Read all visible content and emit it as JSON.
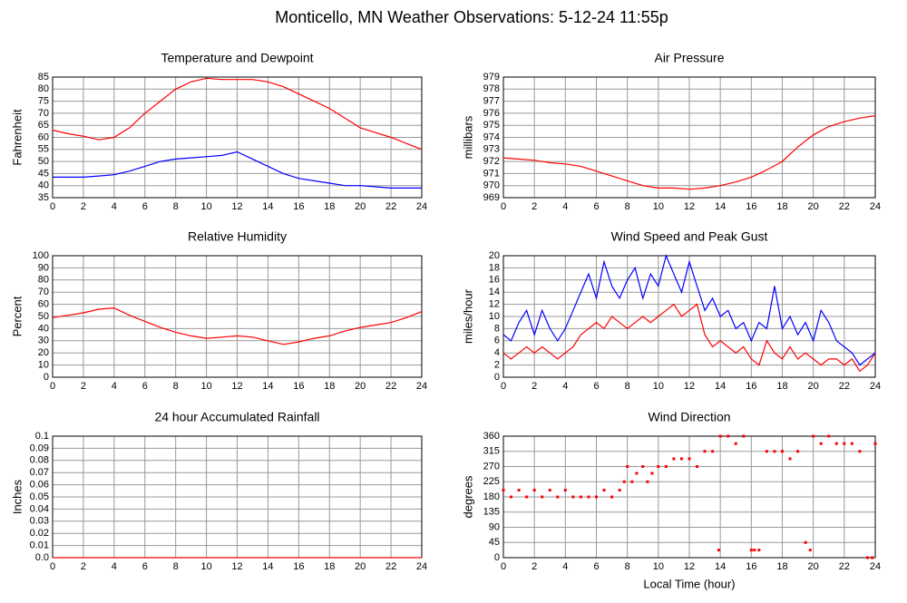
{
  "title": "Monticello, MN Weather Observations: 5-12-24 11:55p",
  "chart_data": [
    {
      "type": "line",
      "title": "Temperature and Dewpoint",
      "y_label": "Fahrenheit",
      "xlim": [
        0,
        24
      ],
      "xticks": [
        0,
        2,
        4,
        6,
        8,
        10,
        12,
        14,
        16,
        18,
        20,
        22,
        24
      ],
      "ylim": [
        35,
        85
      ],
      "yticks": [
        35,
        40,
        45,
        50,
        55,
        60,
        65,
        70,
        75,
        80,
        85
      ],
      "grid": true,
      "x": [
        0,
        1,
        2,
        3,
        4,
        5,
        6,
        7,
        8,
        9,
        10,
        11,
        12,
        13,
        14,
        15,
        16,
        17,
        18,
        19,
        20,
        21,
        22,
        23,
        24
      ],
      "series": [
        {
          "name": "Temperature",
          "color": "#ff0000",
          "values": [
            63,
            61.5,
            60.5,
            59,
            60,
            64,
            70,
            75,
            80,
            83,
            84.5,
            84,
            84,
            84,
            83,
            81,
            78,
            75,
            72,
            68,
            64,
            62,
            60,
            57.5,
            55
          ]
        },
        {
          "name": "Dewpoint",
          "color": "#0000ff",
          "values": [
            43.5,
            43.5,
            43.5,
            44,
            44.5,
            46,
            48,
            50,
            51,
            51.5,
            52,
            52.5,
            54,
            51,
            48,
            45,
            43,
            42,
            41,
            40,
            40,
            39.5,
            39,
            39,
            39
          ]
        }
      ]
    },
    {
      "type": "line",
      "title": "Air Pressure",
      "y_label": "millibars",
      "xlim": [
        0,
        24
      ],
      "xticks": [
        0,
        2,
        4,
        6,
        8,
        10,
        12,
        14,
        16,
        18,
        20,
        22,
        24
      ],
      "ylim": [
        969,
        979
      ],
      "yticks": [
        969,
        970,
        971,
        972,
        973,
        974,
        975,
        976,
        977,
        978,
        979
      ],
      "grid": true,
      "x": [
        0,
        1,
        2,
        3,
        4,
        5,
        6,
        7,
        8,
        9,
        10,
        11,
        12,
        13,
        14,
        15,
        16,
        17,
        18,
        19,
        20,
        21,
        22,
        23,
        24
      ],
      "series": [
        {
          "name": "Pressure",
          "color": "#ff0000",
          "values": [
            972.3,
            972.2,
            972.1,
            971.9,
            971.8,
            971.6,
            971.2,
            970.8,
            970.4,
            970.0,
            969.8,
            969.8,
            969.7,
            969.8,
            970.0,
            970.3,
            970.7,
            971.3,
            972.0,
            973.2,
            974.2,
            974.9,
            975.3,
            975.6,
            975.8
          ]
        }
      ]
    },
    {
      "type": "line",
      "title": "Relative Humidity",
      "y_label": "Percent",
      "xlim": [
        0,
        24
      ],
      "xticks": [
        0,
        2,
        4,
        6,
        8,
        10,
        12,
        14,
        16,
        18,
        20,
        22,
        24
      ],
      "ylim": [
        0,
        100
      ],
      "yticks": [
        0,
        10,
        20,
        30,
        40,
        50,
        60,
        70,
        80,
        90,
        100
      ],
      "grid": true,
      "x": [
        0,
        1,
        2,
        3,
        4,
        5,
        6,
        7,
        8,
        9,
        10,
        11,
        12,
        13,
        14,
        15,
        16,
        17,
        18,
        19,
        20,
        21,
        22,
        23,
        24
      ],
      "series": [
        {
          "name": "Humidity",
          "color": "#ff0000",
          "values": [
            49,
            51,
            53,
            56,
            57,
            51,
            46,
            41,
            37,
            34,
            32,
            33,
            34,
            33,
            30,
            27,
            29,
            32,
            34,
            38,
            41,
            43,
            45,
            49,
            54
          ]
        }
      ]
    },
    {
      "type": "line",
      "title": "Wind Speed and Peak Gust",
      "y_label": "miles/hour",
      "xlim": [
        0,
        24
      ],
      "xticks": [
        0,
        2,
        4,
        6,
        8,
        10,
        12,
        14,
        16,
        18,
        20,
        22,
        24
      ],
      "ylim": [
        0,
        20
      ],
      "yticks": [
        0,
        2,
        4,
        6,
        8,
        10,
        12,
        14,
        16,
        18,
        20
      ],
      "grid": true,
      "x": [
        0,
        0.5,
        1,
        1.5,
        2,
        2.5,
        3,
        3.5,
        4,
        4.5,
        5,
        5.5,
        6,
        6.5,
        7,
        7.5,
        8,
        8.5,
        9,
        9.5,
        10,
        10.5,
        11,
        11.5,
        12,
        12.5,
        13,
        13.5,
        14,
        14.5,
        15,
        15.5,
        16,
        16.5,
        17,
        17.5,
        18,
        18.5,
        19,
        19.5,
        20,
        20.5,
        21,
        21.5,
        22,
        22.5,
        23,
        23.5,
        24
      ],
      "series": [
        {
          "name": "Wind Speed",
          "color": "#ff0000",
          "values": [
            4,
            3,
            4,
            5,
            4,
            5,
            4,
            3,
            4,
            5,
            7,
            8,
            9,
            8,
            10,
            9,
            8,
            9,
            10,
            9,
            10,
            11,
            12,
            10,
            11,
            12,
            7,
            5,
            6,
            5,
            4,
            5,
            3,
            2,
            6,
            4,
            3,
            5,
            3,
            4,
            3,
            2,
            3,
            3,
            2,
            3,
            1,
            2,
            4
          ]
        },
        {
          "name": "Peak Gust",
          "color": "#0000ff",
          "values": [
            7,
            6,
            9,
            11,
            7,
            11,
            8,
            6,
            8,
            11,
            14,
            17,
            13,
            19,
            15,
            13,
            16,
            18,
            13,
            17,
            15,
            20,
            17,
            14,
            19,
            15,
            11,
            13,
            10,
            11,
            8,
            9,
            6,
            9,
            8,
            15,
            8,
            10,
            7,
            9,
            6,
            11,
            9,
            6,
            5,
            4,
            2,
            3,
            4
          ]
        }
      ]
    },
    {
      "type": "line",
      "title": "24 hour Accumulated Rainfall",
      "y_label": "Inches",
      "xlim": [
        0,
        24
      ],
      "xticks": [
        0,
        2,
        4,
        6,
        8,
        10,
        12,
        14,
        16,
        18,
        20,
        22,
        24
      ],
      "ylim": [
        0,
        0.1
      ],
      "yticks": [
        {
          "value": 0,
          "label": "0.0"
        },
        0.01,
        0.02,
        0.03,
        0.04,
        0.05,
        0.06,
        0.07,
        0.08,
        0.09,
        0.1
      ],
      "grid": true,
      "x": [
        0,
        24
      ],
      "series": [
        {
          "name": "Rainfall",
          "color": "#ff0000",
          "values": [
            0,
            0
          ]
        }
      ]
    },
    {
      "type": "scatter",
      "title": "Wind Direction",
      "y_label": "degrees",
      "x_label": "Local Time (hour)",
      "xlim": [
        0,
        24
      ],
      "xticks": [
        0,
        2,
        4,
        6,
        8,
        10,
        12,
        14,
        16,
        18,
        20,
        22,
        24
      ],
      "ylim": [
        0,
        360
      ],
      "yticks": [
        0,
        45,
        90,
        135,
        180,
        225,
        270,
        315,
        360
      ],
      "grid": true,
      "x": [
        0,
        0.5,
        1,
        1.5,
        2,
        2.5,
        3,
        3.5,
        4,
        4.5,
        5,
        5.5,
        6,
        6.5,
        7,
        7.5,
        7.8,
        8,
        8.3,
        8.6,
        9,
        9.3,
        9.6,
        10,
        10.5,
        11,
        11.5,
        12,
        12.5,
        13,
        13.5,
        13.9,
        14,
        14.5,
        15,
        15.5,
        16,
        16.2,
        16.5,
        17,
        17.5,
        18,
        18.5,
        19,
        19.5,
        19.8,
        20,
        20.5,
        21,
        21.5,
        22,
        22.5,
        23,
        23.5,
        23.8,
        24
      ],
      "series": [
        {
          "name": "Direction",
          "color": "#ff0000",
          "values": [
            200,
            180,
            200,
            180,
            200,
            180,
            200,
            180,
            200,
            180,
            180,
            180,
            180,
            200,
            180,
            200,
            225,
            270,
            225,
            250,
            270,
            225,
            250,
            270,
            270,
            293,
            293,
            293,
            270,
            315,
            315,
            22.5,
            360,
            360,
            338,
            360,
            22.5,
            22.5,
            22.5,
            315,
            315,
            315,
            293,
            315,
            45,
            22.5,
            360,
            338,
            360,
            338,
            338,
            338,
            315,
            0,
            0,
            338
          ]
        }
      ]
    }
  ]
}
